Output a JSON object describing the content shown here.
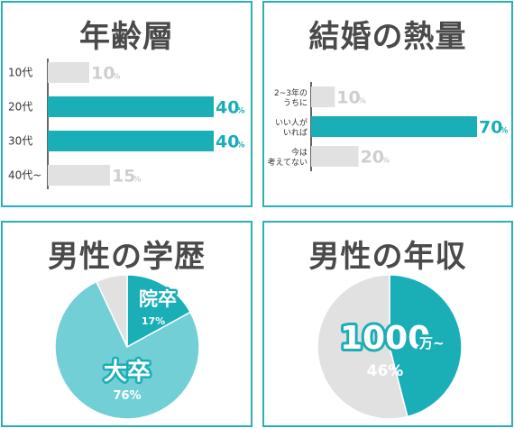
{
  "colors": {
    "teal": "#1aaeb6",
    "light_teal": "#72cfd6",
    "gray": "#e1e1e1",
    "gray_text": "#cfcfcf",
    "border": "#2bb0b8"
  },
  "chart_data": [
    {
      "type": "bar",
      "orientation": "horizontal",
      "title": "年齢層",
      "categories": [
        [
          "10代"
        ],
        [
          "20代"
        ],
        [
          "30代"
        ],
        [
          "40代~"
        ]
      ],
      "values": [
        10,
        40,
        40,
        15
      ],
      "value_labels": [
        "10",
        "40",
        "40",
        "15"
      ],
      "unit": "%",
      "highlight": [
        false,
        true,
        true,
        false
      ],
      "xlim": [
        0,
        40
      ]
    },
    {
      "type": "bar",
      "orientation": "horizontal",
      "title": "結婚の熱量",
      "categories": [
        [
          "2~3年の",
          "うちに"
        ],
        [
          "いい人が",
          "いれば"
        ],
        [
          "今は",
          "考えてない"
        ]
      ],
      "values": [
        10,
        70,
        20
      ],
      "value_labels": [
        "10",
        "70",
        "20"
      ],
      "unit": "%",
      "highlight": [
        false,
        true,
        false
      ],
      "xlim": [
        0,
        70
      ]
    },
    {
      "type": "pie",
      "title": "男性の学歴",
      "slices": [
        {
          "label": "院卒",
          "value": 17,
          "pct": "17%",
          "tone": "teal"
        },
        {
          "label": "大卒",
          "value": 76,
          "pct": "76%",
          "tone": "light_teal"
        },
        {
          "label": "",
          "value": 7,
          "pct": "",
          "tone": "gray"
        }
      ]
    },
    {
      "type": "pie",
      "title": "男性の年収",
      "slices": [
        {
          "label": "",
          "value": 46,
          "tone": "teal"
        },
        {
          "label": "",
          "value": 54,
          "tone": "gray"
        }
      ],
      "center_label": "1000",
      "center_unit": "万~",
      "center_pct": "46%"
    }
  ]
}
